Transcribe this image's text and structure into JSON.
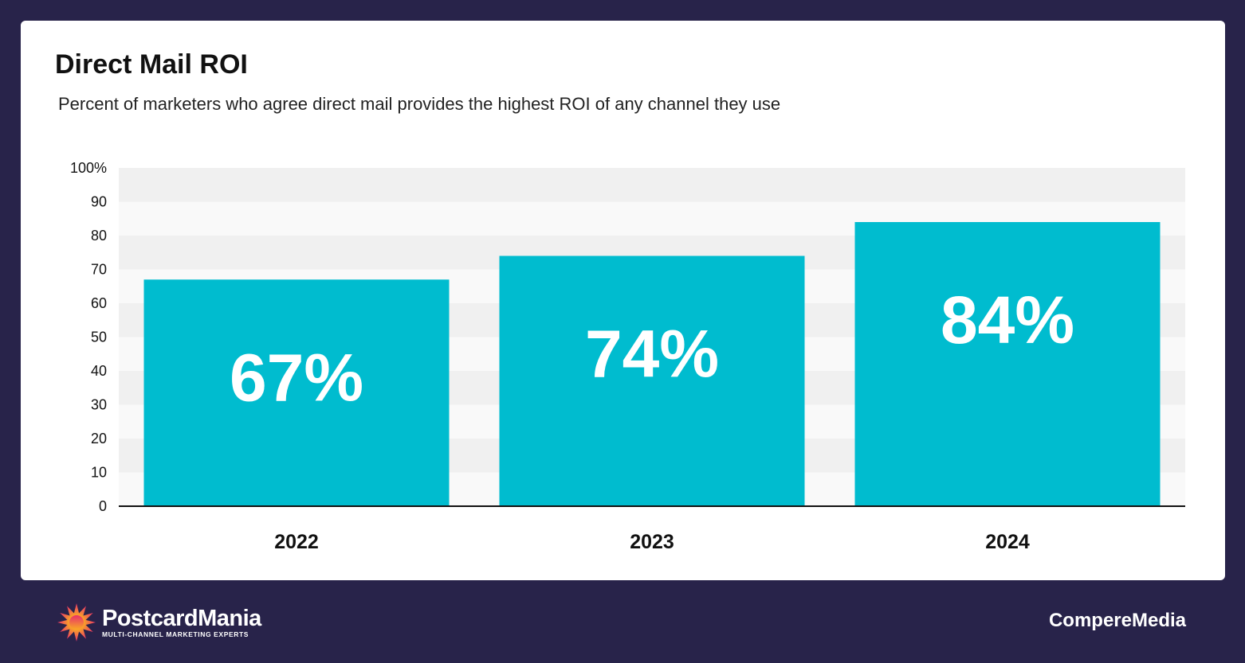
{
  "header": {
    "title": "Direct Mail ROI",
    "subtitle": "Percent of marketers who agree direct mail provides the highest ROI of any channel they use"
  },
  "chart_data": {
    "type": "bar",
    "title": "Direct Mail ROI",
    "subtitle": "Percent of marketers who agree direct mail provides the highest ROI of any channel they use",
    "categories": [
      "2022",
      "2023",
      "2024"
    ],
    "values": [
      67,
      74,
      84
    ],
    "data_labels": [
      "67%",
      "74%",
      "84%"
    ],
    "xlabel": "",
    "ylabel": "",
    "ylim": [
      0,
      100
    ],
    "y_ticks": [
      "0",
      "10",
      "20",
      "30",
      "40",
      "50",
      "60",
      "70",
      "80",
      "90",
      "100%"
    ],
    "grid": "alternating horizontal bands",
    "legend": "none",
    "colors": {
      "bar": "#00bccf",
      "band_dark": "#f0f0f0",
      "band_light": "#f9f9f9",
      "axis": "#111111",
      "background": "#28234a"
    }
  },
  "footer": {
    "logo_name": "PostcardMania",
    "logo_tagline": "MULTI-CHANNEL MARKETING EXPERTS",
    "partner": "CompereMedia"
  }
}
